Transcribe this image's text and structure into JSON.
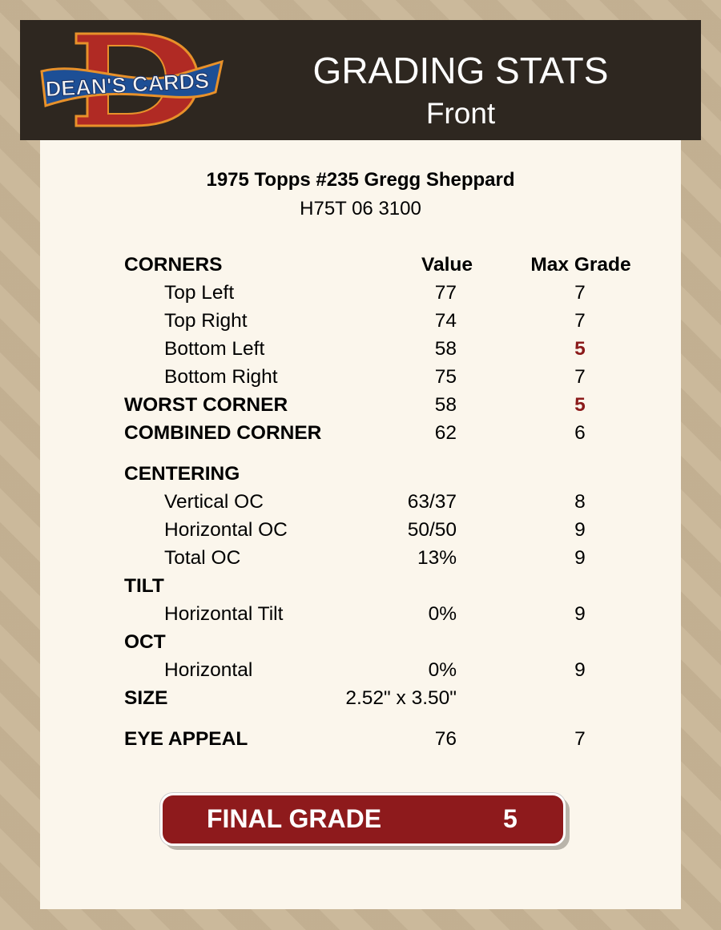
{
  "header": {
    "logo_text": "DEAN'S CARDS",
    "title": "GRADING STATS",
    "subtitle": "Front"
  },
  "card": {
    "title": "1975 Topps #235 Gregg Sheppard",
    "code": "H75T 06 3100"
  },
  "columns": {
    "label": "CORNERS",
    "value": "Value",
    "max": "Max Grade"
  },
  "rows": [
    {
      "label": "Top Left",
      "value": "77",
      "max": "7"
    },
    {
      "label": "Top Right",
      "value": "74",
      "max": "7"
    },
    {
      "label": "Bottom Left",
      "value": "58",
      "max": "5"
    },
    {
      "label": "Bottom Right",
      "value": "75",
      "max": "7"
    },
    {
      "label": "WORST CORNER",
      "value": "58",
      "max": "5"
    },
    {
      "label": "COMBINED CORNER",
      "value": "62",
      "max": "6"
    },
    {
      "label": "CENTERING"
    },
    {
      "label": "Vertical OC",
      "value": "63/37",
      "max": "8"
    },
    {
      "label": "Horizontal OC",
      "value": "50/50",
      "max": "9"
    },
    {
      "label": "Total OC",
      "value": "13%",
      "max": "9"
    },
    {
      "label": "TILT"
    },
    {
      "label": "Horizontal Tilt",
      "value": "0%",
      "max": "9"
    },
    {
      "label": "OCT"
    },
    {
      "label": "Horizontal",
      "value": "0%",
      "max": "9"
    },
    {
      "label": "SIZE",
      "value": "2.52\" x 3.50\""
    },
    {
      "label": "EYE APPEAL",
      "value": "76",
      "max": "7"
    }
  ],
  "final": {
    "label": "FINAL GRADE",
    "value": "5"
  },
  "colors": {
    "header_bg": "#2e2720",
    "panel_bg": "#fbf6ec",
    "low_grade": "#8b1a1a",
    "final_bg": "#8e1a1c"
  }
}
